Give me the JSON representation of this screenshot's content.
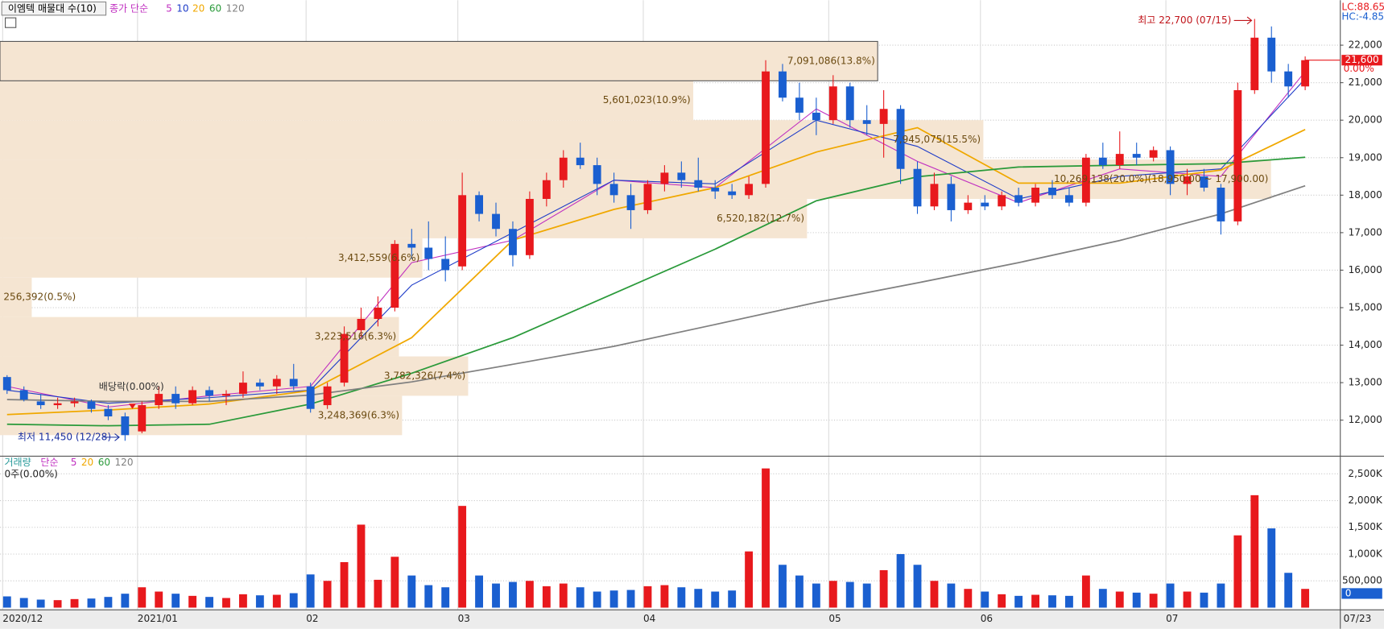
{
  "chart_data": {
    "type": "candlestick",
    "title": "이엠텍 매물대 수(10)",
    "ma_legend": [
      "종가 단순",
      "5",
      "10",
      "20",
      "60",
      "120"
    ],
    "lc_label": "LC:88.65",
    "hc_label": "HC:-4.85",
    "x_labels": [
      {
        "value": 0,
        "label": "2020/12"
      },
      {
        "value": 8,
        "label": "2021/01"
      },
      {
        "value": 18,
        "label": "02"
      },
      {
        "value": 27,
        "label": "03"
      },
      {
        "value": 38,
        "label": "04"
      },
      {
        "value": 49,
        "label": "05"
      },
      {
        "value": 58,
        "label": "06"
      },
      {
        "value": 69,
        "label": "07"
      }
    ],
    "last_date": "07/23",
    "ylim": [
      11050,
      23200
    ],
    "yticks": [
      {
        "value": 12000,
        "label": "12,000"
      },
      {
        "value": 13000,
        "label": "13,000"
      },
      {
        "value": 14000,
        "label": "14,000"
      },
      {
        "value": 15000,
        "label": "15,000"
      },
      {
        "value": 16000,
        "label": "16,000"
      },
      {
        "value": 17000,
        "label": "17,000"
      },
      {
        "value": 18000,
        "label": "18,000"
      },
      {
        "value": 19000,
        "label": "19,000"
      },
      {
        "value": 20000,
        "label": "20,000"
      },
      {
        "value": 21000,
        "label": "21,000"
      },
      {
        "value": 22000,
        "label": "22,000"
      }
    ],
    "up_color": "#e8191d",
    "down_color": "#1a5fd0",
    "candles": [
      [
        13150,
        13200,
        12700,
        12800
      ],
      [
        12800,
        12900,
        12500,
        12550
      ],
      [
        12500,
        12700,
        12300,
        12400
      ],
      [
        12400,
        12600,
        12300,
        12450
      ],
      [
        12450,
        12600,
        12350,
        12500
      ],
      [
        12500,
        12550,
        12200,
        12300
      ],
      [
        12300,
        12400,
        12000,
        12100
      ],
      [
        12100,
        12200,
        11450,
        11600
      ],
      [
        11700,
        12500,
        11650,
        12400
      ],
      [
        12400,
        12900,
        12300,
        12700
      ],
      [
        12700,
        12900,
        12300,
        12450
      ],
      [
        12450,
        12900,
        12400,
        12800
      ],
      [
        12800,
        12900,
        12500,
        12650
      ],
      [
        12650,
        12800,
        12400,
        12700
      ],
      [
        12700,
        13300,
        12600,
        13000
      ],
      [
        13000,
        13100,
        12800,
        12900
      ],
      [
        12900,
        13200,
        12700,
        13100
      ],
      [
        13100,
        13500,
        12800,
        12900
      ],
      [
        12900,
        13000,
        12200,
        12300
      ],
      [
        12400,
        13000,
        12300,
        12900
      ],
      [
        13000,
        14500,
        12900,
        14300
      ],
      [
        14400,
        15000,
        14200,
        14700
      ],
      [
        14700,
        15300,
        14500,
        15000
      ],
      [
        15000,
        16800,
        14900,
        16700
      ],
      [
        16700,
        17100,
        16300,
        16600
      ],
      [
        16600,
        17300,
        16000,
        16300
      ],
      [
        16300,
        16900,
        15700,
        16000
      ],
      [
        16100,
        18600,
        16000,
        18000
      ],
      [
        18000,
        18100,
        17300,
        17500
      ],
      [
        17500,
        17800,
        16900,
        17100
      ],
      [
        17100,
        17300,
        16100,
        16400
      ],
      [
        16400,
        18100,
        16300,
        17900
      ],
      [
        17900,
        18600,
        17700,
        18400
      ],
      [
        18400,
        19200,
        18200,
        19000
      ],
      [
        19000,
        19400,
        18700,
        18800
      ],
      [
        18800,
        19000,
        18000,
        18300
      ],
      [
        18300,
        18600,
        17800,
        18000
      ],
      [
        18000,
        18300,
        17100,
        17600
      ],
      [
        17600,
        18400,
        17500,
        18300
      ],
      [
        18300,
        18800,
        18100,
        18600
      ],
      [
        18600,
        18900,
        18200,
        18400
      ],
      [
        18400,
        19000,
        18100,
        18200
      ],
      [
        18200,
        18400,
        17900,
        18100
      ],
      [
        18100,
        18300,
        17900,
        18000
      ],
      [
        18000,
        18500,
        17900,
        18300
      ],
      [
        18300,
        21600,
        18200,
        21300
      ],
      [
        21300,
        21500,
        20500,
        20600
      ],
      [
        20600,
        21000,
        20000,
        20200
      ],
      [
        20200,
        20600,
        19600,
        20000
      ],
      [
        20000,
        21200,
        19900,
        20900
      ],
      [
        20900,
        21000,
        19800,
        20000
      ],
      [
        20000,
        20400,
        19600,
        19900
      ],
      [
        19900,
        20800,
        19000,
        20300
      ],
      [
        20300,
        20400,
        18300,
        18700
      ],
      [
        18700,
        18900,
        17500,
        17700
      ],
      [
        17700,
        18600,
        17600,
        18300
      ],
      [
        18300,
        18500,
        17300,
        17600
      ],
      [
        17600,
        18000,
        17500,
        17800
      ],
      [
        17800,
        18000,
        17600,
        17700
      ],
      [
        17700,
        18100,
        17600,
        18000
      ],
      [
        18000,
        18200,
        17700,
        17800
      ],
      [
        17800,
        18300,
        17700,
        18200
      ],
      [
        18200,
        18400,
        17900,
        18000
      ],
      [
        18000,
        18200,
        17700,
        17800
      ],
      [
        17800,
        19100,
        17700,
        19000
      ],
      [
        19000,
        19400,
        18700,
        18800
      ],
      [
        18800,
        19700,
        18700,
        19100
      ],
      [
        19100,
        19400,
        18800,
        19000
      ],
      [
        19000,
        19300,
        18900,
        19200
      ],
      [
        19200,
        19300,
        18000,
        18300
      ],
      [
        18300,
        18700,
        18000,
        18500
      ],
      [
        18500,
        18700,
        18100,
        18200
      ],
      [
        18200,
        18300,
        16950,
        17300
      ],
      [
        17300,
        21000,
        17200,
        20800
      ],
      [
        20800,
        22700,
        20700,
        22200
      ],
      [
        22200,
        22500,
        21000,
        21300
      ],
      [
        21300,
        21500,
        20600,
        20900
      ],
      [
        20900,
        21700,
        20800,
        21600
      ]
    ],
    "ma_x": [
      0,
      6,
      12,
      18,
      24,
      30,
      36,
      42,
      48,
      54,
      60,
      66,
      72,
      77
    ],
    "ma_series": [
      {
        "name": "5",
        "color": "#c030c0",
        "values": [
          12900,
          12350,
          12650,
          12900,
          16200,
          16800,
          18400,
          18200,
          20300,
          18900,
          17800,
          18700,
          18500,
          21300
        ]
      },
      {
        "name": "10",
        "color": "#1e3cc8",
        "values": [
          12800,
          12450,
          12600,
          12800,
          15600,
          17000,
          18400,
          18300,
          20000,
          19300,
          17900,
          18500,
          18700,
          21100
        ]
      },
      {
        "name": "20",
        "color": "#f0a800",
        "values": [
          12150,
          12270,
          12430,
          12790,
          14200,
          16800,
          17620,
          18200,
          19150,
          19800,
          18320,
          18320,
          18670,
          19750
        ]
      },
      {
        "name": "60",
        "color": "#2a9a3a",
        "values": [
          11890,
          11850,
          11890,
          12430,
          13250,
          14200,
          15380,
          16560,
          17850,
          18490,
          18750,
          18800,
          18840,
          19010
        ]
      },
      {
        "name": "120",
        "color": "#808080",
        "values": [
          12550,
          12500,
          12500,
          12670,
          13020,
          13490,
          13970,
          14550,
          15140,
          15660,
          16200,
          16790,
          17500,
          18250
        ]
      }
    ],
    "profile": {
      "bins": [
        11600,
        12650,
        13700,
        14750,
        15800,
        16850,
        17900,
        18950,
        20000,
        21050,
        22100
      ],
      "values": [
        3248369,
        3782326,
        3223516,
        256392,
        3412559,
        6520182,
        10269138,
        7945075,
        5601023,
        7091086
      ],
      "value_labels": [
        "3,248,369(6.3%)",
        "3,782,326(7.4%)",
        "3,223,516(6.3%)",
        "256,392(0.5%)",
        "3,412,559(6.6%)",
        "6,520,182(12.7%)",
        "10,269,138(20.0%)(18,950.00 ~ 17,900.00)",
        "7,945,075(15.5%)",
        "5,601,023(10.9%)",
        "7,091,086(13.8%)"
      ],
      "color": "#f5e5d2"
    },
    "high_note": "최고 22,700 (07/15)",
    "low_note": "최저 11,450 (12/28)",
    "dividend_note": "배당락(0.00%)",
    "current_price": {
      "value": 21600,
      "label": "21,600"
    },
    "current_change": "0.00%",
    "volume": {
      "legend": [
        "거래량",
        "단순",
        "5",
        "20",
        "60",
        "120"
      ],
      "status": "0주(0.00%)",
      "current": 0,
      "ylim": [
        0,
        2820000
      ],
      "yticks": [
        {
          "value": 500000,
          "label": "500,000"
        },
        {
          "value": 1000000,
          "label": "1,000K"
        },
        {
          "value": 1500000,
          "label": "1,500K"
        },
        {
          "value": 2000000,
          "label": "2,000K"
        },
        {
          "value": 2500000,
          "label": "2,500K"
        }
      ],
      "values": [
        210000,
        180000,
        150000,
        140000,
        160000,
        170000,
        200000,
        260000,
        380000,
        300000,
        260000,
        220000,
        200000,
        180000,
        250000,
        230000,
        240000,
        270000,
        620000,
        500000,
        850000,
        1550000,
        520000,
        950000,
        600000,
        420000,
        380000,
        1900000,
        600000,
        450000,
        480000,
        500000,
        400000,
        450000,
        380000,
        300000,
        320000,
        330000,
        400000,
        420000,
        380000,
        350000,
        300000,
        320000,
        1050000,
        2600000,
        800000,
        600000,
        450000,
        500000,
        480000,
        450000,
        700000,
        1000000,
        800000,
        500000,
        450000,
        350000,
        300000,
        250000,
        220000,
        240000,
        230000,
        220000,
        600000,
        350000,
        300000,
        280000,
        260000,
        450000,
        300000,
        280000,
        450000,
        1350000,
        2100000,
        1480000,
        650000,
        350000
      ]
    }
  }
}
